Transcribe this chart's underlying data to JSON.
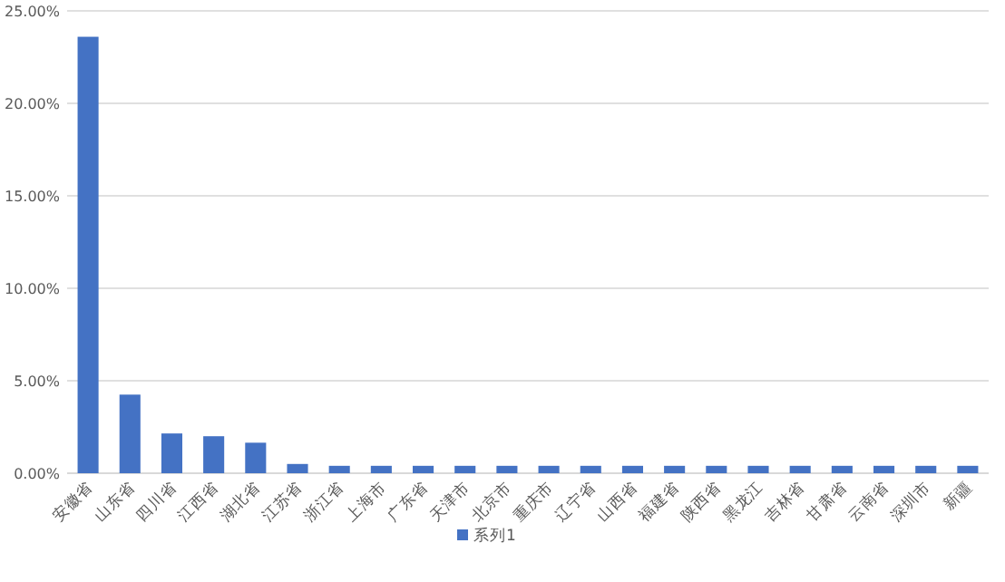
{
  "chart_data": {
    "type": "bar",
    "categories": [
      "安徽省",
      "山东省",
      "四川省",
      "江西省",
      "湖北省",
      "江苏省",
      "浙江省",
      "上海市",
      "广东省",
      "天津市",
      "北京市",
      "重庆市",
      "辽宁省",
      "山西省",
      "福建省",
      "陕西省",
      "黑龙江",
      "吉林省",
      "甘肃省",
      "云南省",
      "深圳市",
      "新疆"
    ],
    "series": [
      {
        "name": "系列1",
        "color": "#4472c4",
        "values": [
          23.6,
          4.25,
          2.15,
          2.0,
          1.65,
          0.5,
          0.4,
          0.4,
          0.4,
          0.4,
          0.4,
          0.4,
          0.4,
          0.4,
          0.4,
          0.4,
          0.4,
          0.4,
          0.4,
          0.4,
          0.4,
          0.4
        ]
      }
    ],
    "ylim": [
      0,
      25
    ],
    "yticks": [
      {
        "value": 0,
        "label": "0.00%"
      },
      {
        "value": 5,
        "label": "5.00%"
      },
      {
        "value": 10,
        "label": "10.00%"
      },
      {
        "value": 15,
        "label": "15.00%"
      },
      {
        "value": 20,
        "label": "20.00%"
      },
      {
        "value": 25,
        "label": "25.00%"
      }
    ],
    "grid": "y",
    "legend": "bottom"
  }
}
